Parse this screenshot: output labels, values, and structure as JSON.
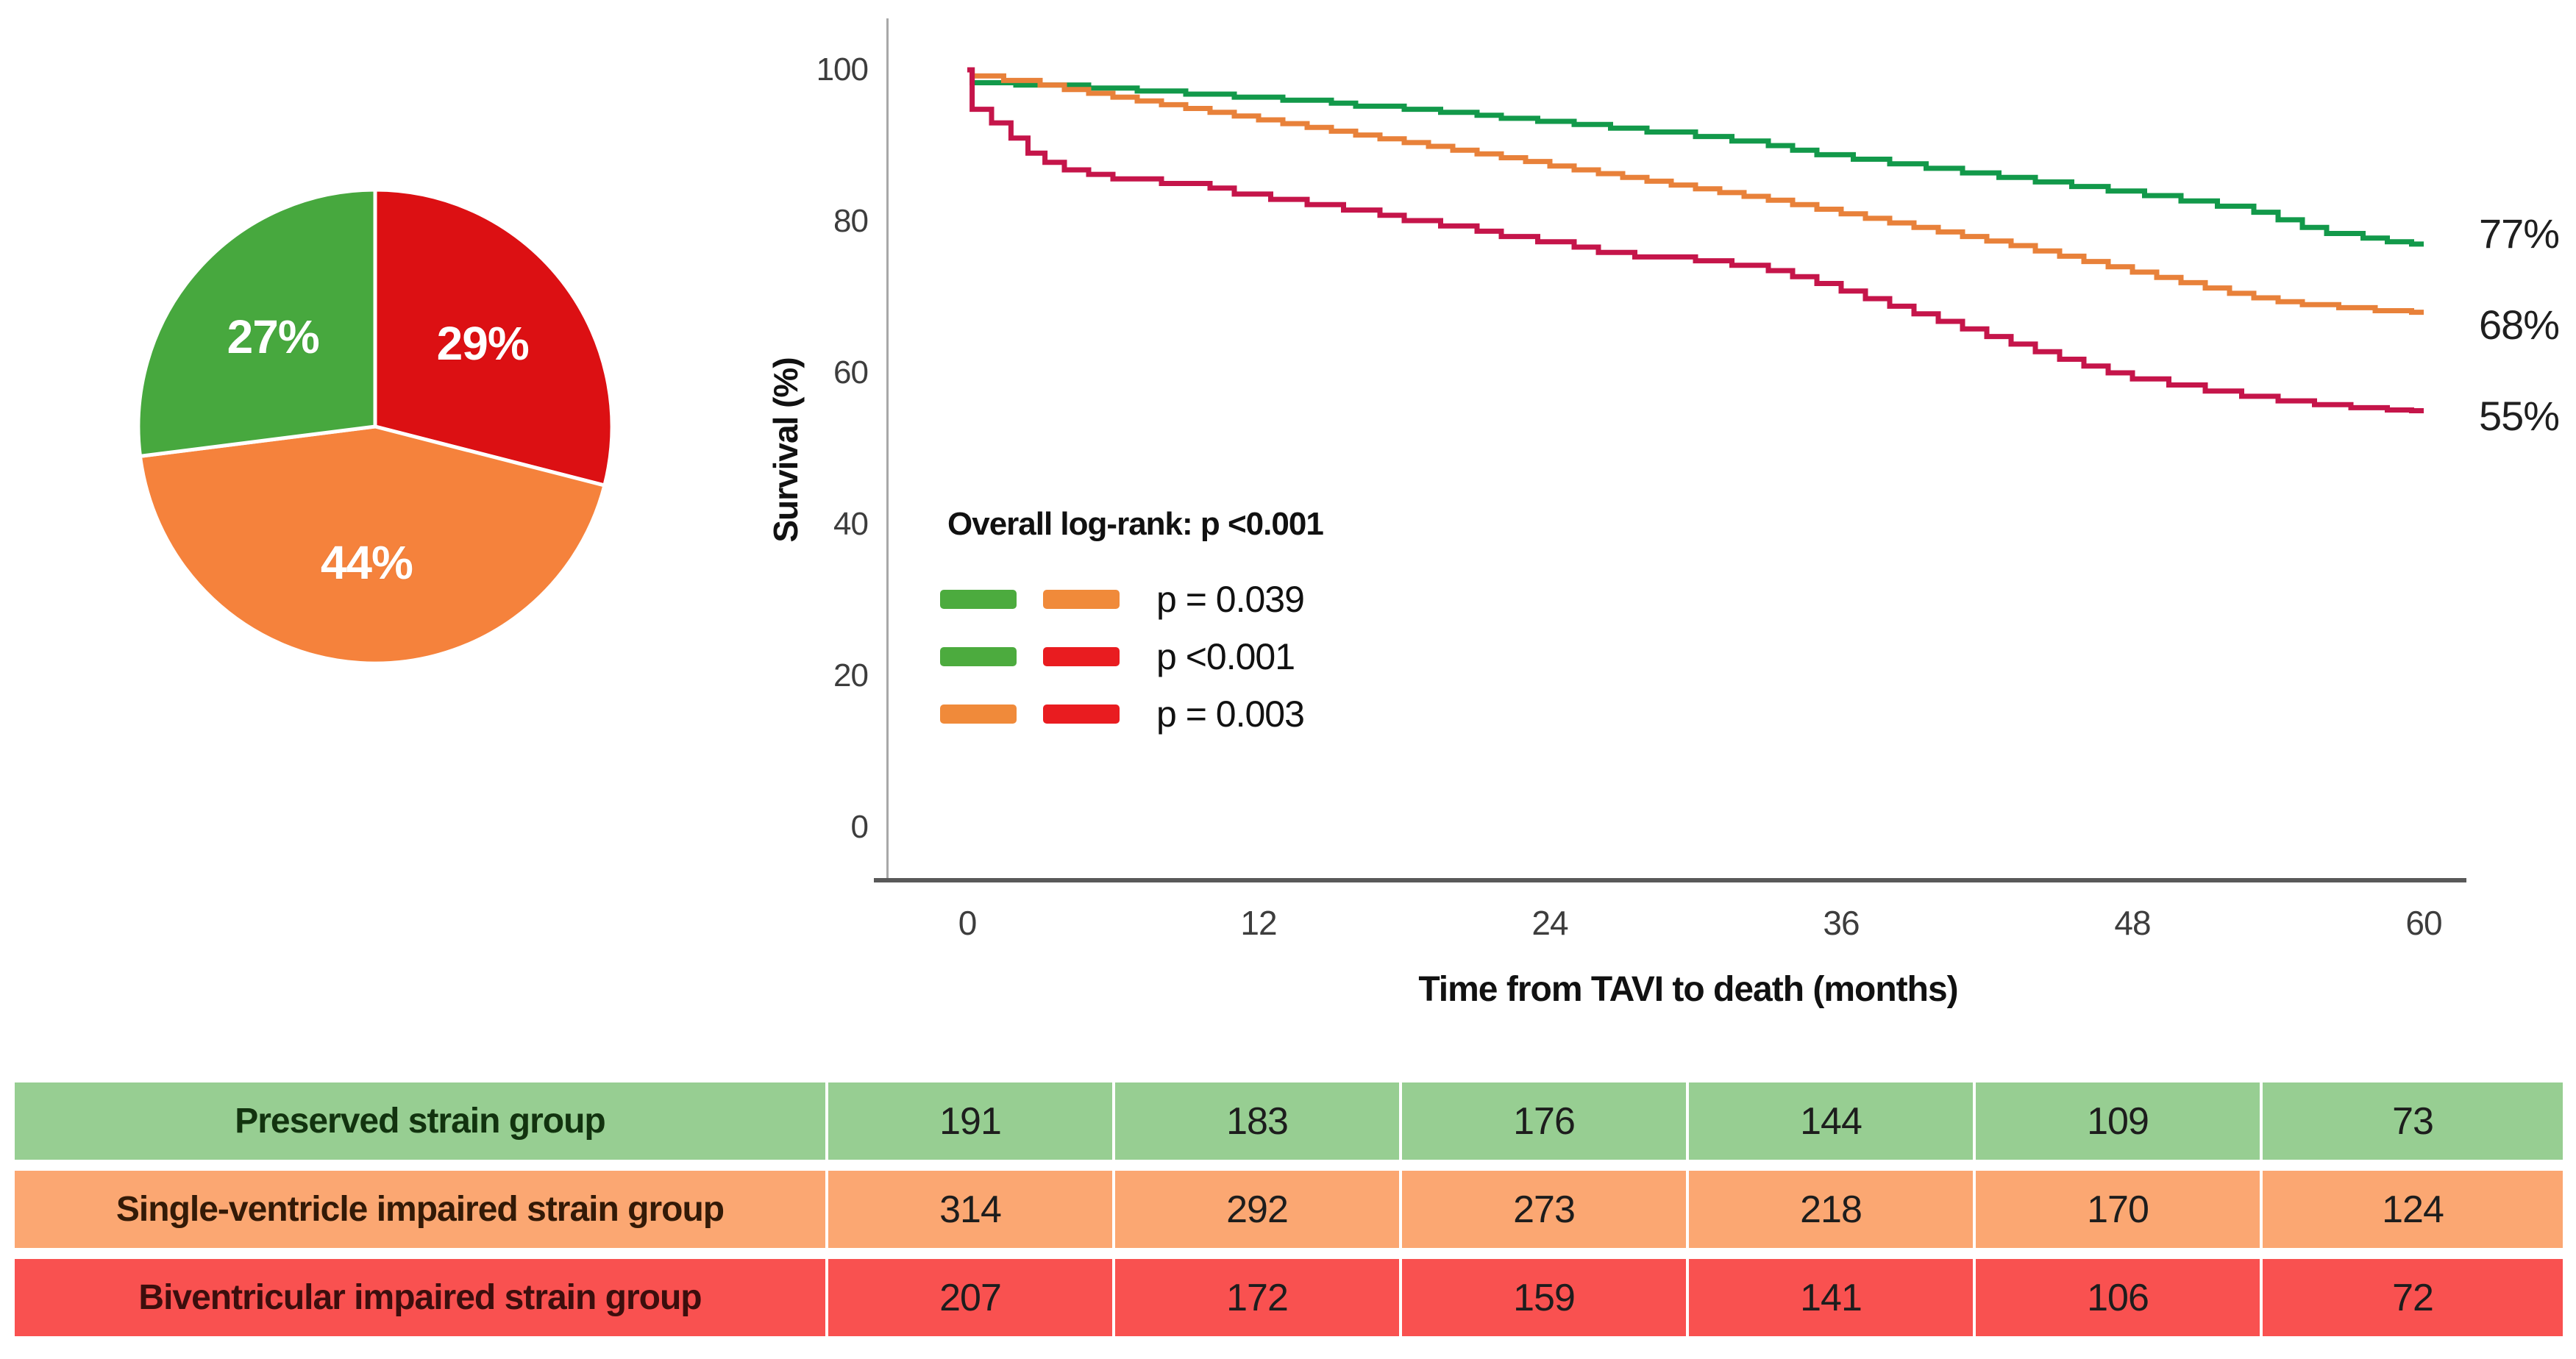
{
  "chart_data": [
    {
      "id": "pie",
      "type": "pie",
      "start_angle_deg": -90,
      "direction": "clockwise",
      "label_color": "#ffffff",
      "slices": [
        {
          "label": "29%",
          "value": 29,
          "color": "#dc1013",
          "group": "Biventricular impaired strain group"
        },
        {
          "label": "44%",
          "value": 44,
          "color": "#f5823c",
          "group": "Single-ventricle impaired strain group"
        },
        {
          "label": "27%",
          "value": 27,
          "color": "#47a83e",
          "group": "Preserved strain group"
        }
      ]
    },
    {
      "id": "km-survival",
      "type": "line",
      "step": true,
      "xlabel": "Time from TAVI to death (months)",
      "ylabel": "Survival (%)",
      "xlim": [
        0,
        60
      ],
      "ylim": [
        0,
        100
      ],
      "grid": false,
      "x_ticks": [
        0,
        12,
        24,
        36,
        48,
        60
      ],
      "y_ticks": [
        100,
        80,
        60,
        40,
        20,
        0
      ],
      "series": [
        {
          "name": "Preserved strain group",
          "color": "#12994a",
          "end_label": "77%",
          "points": [
            [
              0,
              100
            ],
            [
              0.2,
              98.3
            ],
            [
              2,
              98
            ],
            [
              5,
              97.6
            ],
            [
              7,
              97.2
            ],
            [
              9,
              96.8
            ],
            [
              11,
              96.4
            ],
            [
              13,
              96
            ],
            [
              15,
              95.6
            ],
            [
              16,
              95.2
            ],
            [
              18,
              94.8
            ],
            [
              19.5,
              94.4
            ],
            [
              21,
              94
            ],
            [
              22,
              93.6
            ],
            [
              23.5,
              93.2
            ],
            [
              25,
              92.8
            ],
            [
              26.5,
              92.3
            ],
            [
              28,
              91.8
            ],
            [
              30,
              91.2
            ],
            [
              31.5,
              90.6
            ],
            [
              33,
              90
            ],
            [
              34,
              89.4
            ],
            [
              35,
              88.8
            ],
            [
              36.5,
              88.2
            ],
            [
              38,
              87.6
            ],
            [
              39.5,
              87
            ],
            [
              41,
              86.4
            ],
            [
              42.5,
              85.8
            ],
            [
              44,
              85.2
            ],
            [
              45.5,
              84.6
            ],
            [
              47,
              84
            ],
            [
              48.5,
              83.4
            ],
            [
              50,
              82.7
            ],
            [
              51.5,
              82
            ],
            [
              53,
              81.2
            ],
            [
              54,
              80.2
            ],
            [
              55,
              79.2
            ],
            [
              56,
              78.4
            ],
            [
              57.5,
              77.8
            ],
            [
              58.5,
              77.3
            ],
            [
              59.5,
              77
            ]
          ]
        },
        {
          "name": "Single-ventricle impaired strain group",
          "color": "#e8813a",
          "end_label": "68%",
          "points": [
            [
              0,
              100
            ],
            [
              0.2,
              99.2
            ],
            [
              1.5,
              98.6
            ],
            [
              3,
              98
            ],
            [
              4,
              97.4
            ],
            [
              5,
              96.9
            ],
            [
              6,
              96.4
            ],
            [
              7,
              95.9
            ],
            [
              8,
              95.4
            ],
            [
              9,
              94.9
            ],
            [
              10,
              94.4
            ],
            [
              11,
              93.9
            ],
            [
              12,
              93.4
            ],
            [
              13,
              92.9
            ],
            [
              14,
              92.4
            ],
            [
              15,
              91.9
            ],
            [
              16,
              91.4
            ],
            [
              17,
              90.9
            ],
            [
              18,
              90.4
            ],
            [
              19,
              89.9
            ],
            [
              20,
              89.4
            ],
            [
              21,
              88.9
            ],
            [
              22,
              88.4
            ],
            [
              23,
              87.9
            ],
            [
              24,
              87.3
            ],
            [
              25,
              86.8
            ],
            [
              26,
              86.3
            ],
            [
              27,
              85.8
            ],
            [
              28,
              85.3
            ],
            [
              29,
              84.8
            ],
            [
              30,
              84.3
            ],
            [
              31,
              83.8
            ],
            [
              32,
              83.3
            ],
            [
              33,
              82.8
            ],
            [
              34,
              82.2
            ],
            [
              35,
              81.6
            ],
            [
              36,
              81
            ],
            [
              37,
              80.4
            ],
            [
              38,
              79.8
            ],
            [
              39,
              79.2
            ],
            [
              40,
              78.6
            ],
            [
              41,
              78
            ],
            [
              42,
              77.4
            ],
            [
              43,
              76.8
            ],
            [
              44,
              76.1
            ],
            [
              45,
              75.4
            ],
            [
              46,
              74.7
            ],
            [
              47,
              74
            ],
            [
              48,
              73.3
            ],
            [
              49,
              72.6
            ],
            [
              50,
              71.9
            ],
            [
              51,
              71.2
            ],
            [
              52,
              70.5
            ],
            [
              53,
              69.9
            ],
            [
              54,
              69.4
            ],
            [
              55,
              69
            ],
            [
              56.5,
              68.6
            ],
            [
              58,
              68.2
            ],
            [
              59.5,
              68
            ]
          ]
        },
        {
          "name": "Biventricular impaired strain group",
          "color": "#c5154a",
          "end_label": "55%",
          "points": [
            [
              0,
              100
            ],
            [
              0.2,
              94.8
            ],
            [
              1,
              93
            ],
            [
              1.8,
              91
            ],
            [
              2.5,
              89
            ],
            [
              3.2,
              87.8
            ],
            [
              4,
              86.8
            ],
            [
              5,
              86.2
            ],
            [
              6,
              85.6
            ],
            [
              8,
              85
            ],
            [
              10,
              84.4
            ],
            [
              11,
              83.6
            ],
            [
              12.5,
              82.9
            ],
            [
              14,
              82.2
            ],
            [
              15.5,
              81.5
            ],
            [
              17,
              80.8
            ],
            [
              18,
              80.1
            ],
            [
              19.5,
              79.4
            ],
            [
              21,
              78.7
            ],
            [
              22,
              78
            ],
            [
              23.5,
              77.3
            ],
            [
              25,
              76.6
            ],
            [
              26,
              75.9
            ],
            [
              27.5,
              75.3
            ],
            [
              30,
              74.8
            ],
            [
              31.5,
              74.2
            ],
            [
              33,
              73.5
            ],
            [
              34,
              72.7
            ],
            [
              35,
              71.8
            ],
            [
              36,
              70.8
            ],
            [
              37,
              69.8
            ],
            [
              38,
              68.8
            ],
            [
              39,
              67.8
            ],
            [
              40,
              66.8
            ],
            [
              41,
              65.8
            ],
            [
              42,
              64.8
            ],
            [
              43,
              63.8
            ],
            [
              44,
              62.8
            ],
            [
              45,
              61.8
            ],
            [
              46,
              60.9
            ],
            [
              47,
              60
            ],
            [
              48,
              59.2
            ],
            [
              49.5,
              58.4
            ],
            [
              51,
              57.6
            ],
            [
              52.5,
              56.9
            ],
            [
              54,
              56.3
            ],
            [
              55.5,
              55.8
            ],
            [
              57,
              55.4
            ],
            [
              58.5,
              55.1
            ],
            [
              59.5,
              55
            ]
          ]
        }
      ],
      "legend": {
        "title": "Overall log-rank: p <0.001",
        "position": "inside-left-middle",
        "entries": [
          {
            "swatch_colors": [
              "#4cab3e",
              "#f08a3a"
            ],
            "label": "p = 0.039"
          },
          {
            "swatch_colors": [
              "#4cab3e",
              "#e91c20"
            ],
            "label": "p <0.001"
          },
          {
            "swatch_colors": [
              "#f08a3a",
              "#e91c20"
            ],
            "label": "p = 0.003"
          }
        ]
      }
    },
    {
      "id": "numbers-at-risk",
      "type": "table",
      "columns": [
        "group",
        "0",
        "12",
        "24",
        "36",
        "48",
        "60"
      ],
      "value_color": "#1d1d1d",
      "rows": [
        {
          "label": "Preserved strain group",
          "bg": "#97ce92",
          "label_color": "#12330f",
          "values": [
            191,
            183,
            176,
            144,
            109,
            73
          ]
        },
        {
          "label": "Single-ventricle impaired strain group",
          "bg": "#fba772",
          "label_color": "#331a07",
          "values": [
            314,
            292,
            273,
            218,
            170,
            124
          ]
        },
        {
          "label": "Biventricular impaired strain group",
          "bg": "#f95150",
          "label_color": "#3c0e0d",
          "values": [
            207,
            172,
            159,
            141,
            106,
            72
          ]
        }
      ]
    }
  ]
}
